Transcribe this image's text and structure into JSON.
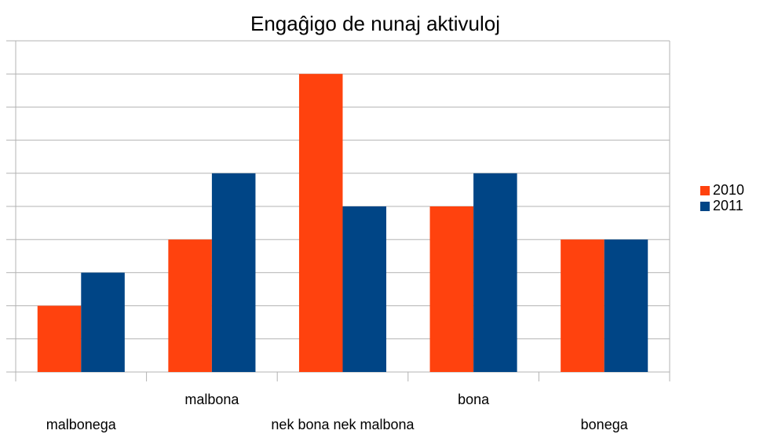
{
  "chart_data": {
    "type": "bar",
    "title": "Engaĝigo de nunaj aktivuloj",
    "categories": [
      "malbonega",
      "malbona",
      "nek bona nek malbona",
      "bona",
      "bonega"
    ],
    "series": [
      {
        "name": "2010",
        "color": "#ff420e",
        "values": [
          2,
          4,
          9,
          5,
          4
        ]
      },
      {
        "name": "2011",
        "color": "#004586",
        "values": [
          3,
          6,
          5,
          6,
          4
        ]
      }
    ],
    "ylim": [
      0,
      10
    ],
    "yticks": [
      0,
      1,
      2,
      3,
      4,
      5,
      6,
      7,
      8,
      9,
      10
    ],
    "grid": true,
    "legend": "right"
  }
}
